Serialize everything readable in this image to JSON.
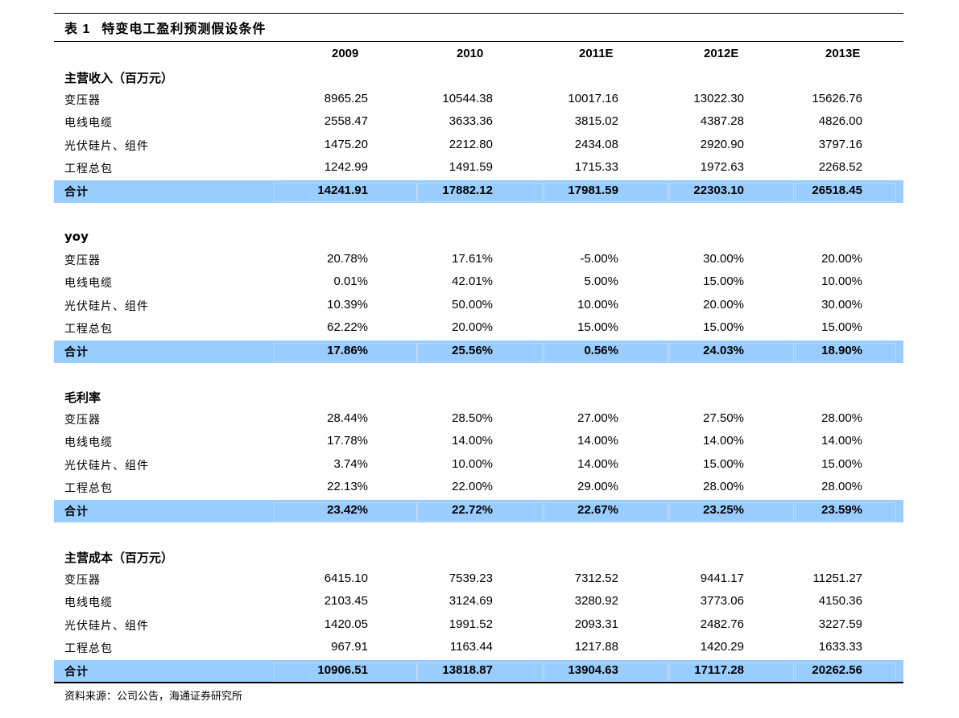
{
  "title": {
    "number": "表 1",
    "text": "特变电工盈利预测假设条件"
  },
  "columns": [
    "2009",
    "2010",
    "2011E",
    "2012E",
    "2013E"
  ],
  "sections": [
    {
      "label": "主营收入（百万元）",
      "rows": [
        {
          "label": "变压器",
          "values": [
            "8965.25",
            "10544.38",
            "10017.16",
            "13022.30",
            "15626.76"
          ]
        },
        {
          "label": "电线电缆",
          "values": [
            "2558.47",
            "3633.36",
            "3815.02",
            "4387.28",
            "4826.00"
          ]
        },
        {
          "label": "光伏硅片、组件",
          "values": [
            "1475.20",
            "2212.80",
            "2434.08",
            "2920.90",
            "3797.16"
          ]
        },
        {
          "label": "工程总包",
          "values": [
            "1242.99",
            "1491.59",
            "1715.33",
            "1972.63",
            "2268.52"
          ]
        }
      ],
      "total": {
        "label": "合计",
        "values": [
          "14241.91",
          "17882.12",
          "17981.59",
          "22303.10",
          "26518.45"
        ]
      }
    },
    {
      "label": "yoy",
      "rows": [
        {
          "label": "变压器",
          "values": [
            "20.78%",
            "17.61%",
            "-5.00%",
            "30.00%",
            "20.00%"
          ]
        },
        {
          "label": "电线电缆",
          "values": [
            "0.01%",
            "42.01%",
            "5.00%",
            "15.00%",
            "10.00%"
          ]
        },
        {
          "label": "光伏硅片、组件",
          "values": [
            "10.39%",
            "50.00%",
            "10.00%",
            "20.00%",
            "30.00%"
          ]
        },
        {
          "label": "工程总包",
          "values": [
            "62.22%",
            "20.00%",
            "15.00%",
            "15.00%",
            "15.00%"
          ]
        }
      ],
      "total": {
        "label": "合计",
        "values": [
          "17.86%",
          "25.56%",
          "0.56%",
          "24.03%",
          "18.90%"
        ]
      }
    },
    {
      "label": "毛利率",
      "rows": [
        {
          "label": "变压器",
          "values": [
            "28.44%",
            "28.50%",
            "27.00%",
            "27.50%",
            "28.00%"
          ]
        },
        {
          "label": "电线电缆",
          "values": [
            "17.78%",
            "14.00%",
            "14.00%",
            "14.00%",
            "14.00%"
          ]
        },
        {
          "label": "光伏硅片、组件",
          "values": [
            "3.74%",
            "10.00%",
            "14.00%",
            "15.00%",
            "15.00%"
          ]
        },
        {
          "label": "工程总包",
          "values": [
            "22.13%",
            "22.00%",
            "29.00%",
            "28.00%",
            "28.00%"
          ]
        }
      ],
      "total": {
        "label": "合计",
        "values": [
          "23.42%",
          "22.72%",
          "22.67%",
          "23.25%",
          "23.59%"
        ]
      }
    },
    {
      "label": "主营成本（百万元）",
      "rows": [
        {
          "label": "变压器",
          "values": [
            "6415.10",
            "7539.23",
            "7312.52",
            "9441.17",
            "11251.27"
          ]
        },
        {
          "label": "电线电缆",
          "values": [
            "2103.45",
            "3124.69",
            "3280.92",
            "3773.06",
            "4150.36"
          ]
        },
        {
          "label": "光伏硅片、组件",
          "values": [
            "1420.05",
            "1991.52",
            "2093.31",
            "2482.76",
            "3227.59"
          ]
        },
        {
          "label": "工程总包",
          "values": [
            "967.91",
            "1163.44",
            "1217.88",
            "1420.29",
            "1633.33"
          ]
        }
      ],
      "total": {
        "label": "合计",
        "values": [
          "10906.51",
          "13818.87",
          "13904.63",
          "17117.28",
          "20262.56"
        ]
      }
    }
  ],
  "source": "资料来源：公司公告，海通证券研究所",
  "colors": {
    "total_row": "#99ccff"
  }
}
